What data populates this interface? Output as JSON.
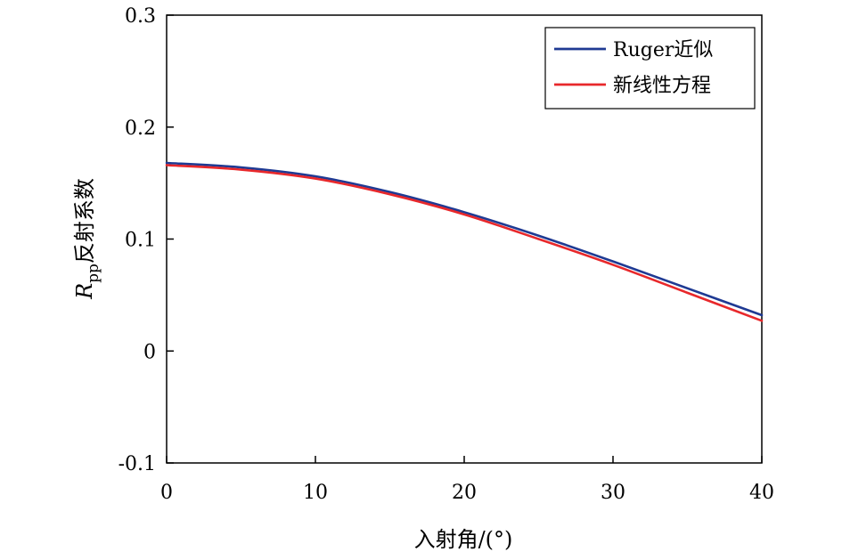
{
  "chart_data": {
    "type": "line",
    "title": "",
    "xlabel": "入射角/(°)",
    "ylabel": {
      "symbol": "R",
      "subscript": "pp",
      "text": "反射系数"
    },
    "xlim": [
      0,
      40
    ],
    "ylim": [
      -0.1,
      0.3
    ],
    "x_ticks": [
      0,
      10,
      20,
      30,
      40
    ],
    "x_tick_labels": [
      "0",
      "10",
      "20",
      "30",
      "40"
    ],
    "y_ticks": [
      -0.1,
      0,
      0.1,
      0.2,
      0.3
    ],
    "y_tick_labels": [
      "-0.1",
      "0",
      "0.1",
      "0.2",
      "0.3"
    ],
    "grid": false,
    "legend_position": "top-right",
    "series": [
      {
        "name": "Ruger近似",
        "color": "#1f3a93",
        "x": [
          0,
          5,
          10,
          15,
          20,
          25,
          30,
          35,
          40
        ],
        "values": [
          0.168,
          0.164,
          0.156,
          0.142,
          0.124,
          0.103,
          0.08,
          0.056,
          0.032
        ]
      },
      {
        "name": "新线性方程",
        "color": "#e8282b",
        "x": [
          0,
          5,
          10,
          15,
          20,
          25,
          30,
          35,
          40
        ],
        "values": [
          0.166,
          0.162,
          0.154,
          0.14,
          0.122,
          0.1,
          0.077,
          0.052,
          0.027
        ]
      }
    ]
  }
}
